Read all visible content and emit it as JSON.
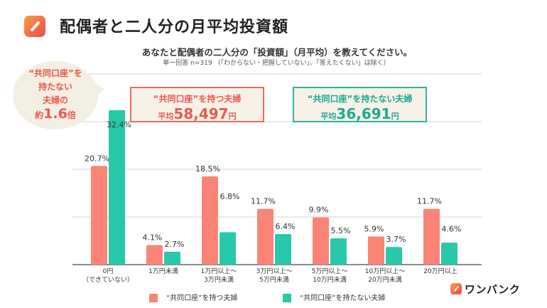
{
  "header": {
    "title": "配偶者と二人分の月平均投資額",
    "question": "あなたと配偶者の二人分の「投資額」（月平均）を教えてください。",
    "note": "単一回答 n=319 （「わからない・把握していない」、「答えたくない」は除く）"
  },
  "callout": {
    "line1": "“共同口座”を",
    "line2": "持たない",
    "line3": "夫婦の",
    "prefix": "約",
    "multiplier": "1.6",
    "suffix": "倍"
  },
  "averages": [
    {
      "label": "“共同口座”を持つ夫婦",
      "prefix": "平均",
      "value": "58,497",
      "unit": "円",
      "color": "#ea5a4d"
    },
    {
      "label": "“共同口座”を持たない夫婦",
      "prefix": "平均",
      "value": "36,691",
      "unit": "円",
      "color": "#1fa892"
    }
  ],
  "brand": {
    "name": "ワンバンク"
  },
  "chart_data": {
    "type": "bar",
    "title": "配偶者と二人分の月平均投資額",
    "xlabel": "",
    "ylabel": "",
    "ylim": [
      0,
      40
    ],
    "grid": true,
    "gridlines": [
      10,
      20,
      30,
      40
    ],
    "legend_position": "bottom",
    "categories": [
      [
        "0円",
        "（できていない）"
      ],
      [
        "1万円未満"
      ],
      [
        "1万円以上～",
        "3万円未満"
      ],
      [
        "3万円以上～",
        "5万円未満"
      ],
      [
        "5万円以上～",
        "10万円未満"
      ],
      [
        "10万円以上～",
        "20万円未満"
      ],
      [
        "20万円以上"
      ]
    ],
    "series": [
      {
        "name": "“共同口座”を持つ夫婦",
        "color": "#fa8577",
        "values": [
          20.7,
          4.1,
          18.5,
          11.7,
          9.9,
          5.9,
          11.7
        ]
      },
      {
        "name": "“共同口座”を持たない夫婦",
        "color": "#27c9aa",
        "values": [
          32.4,
          2.7,
          6.8,
          6.4,
          5.5,
          3.7,
          4.6
        ]
      }
    ],
    "value_suffix": "%"
  }
}
